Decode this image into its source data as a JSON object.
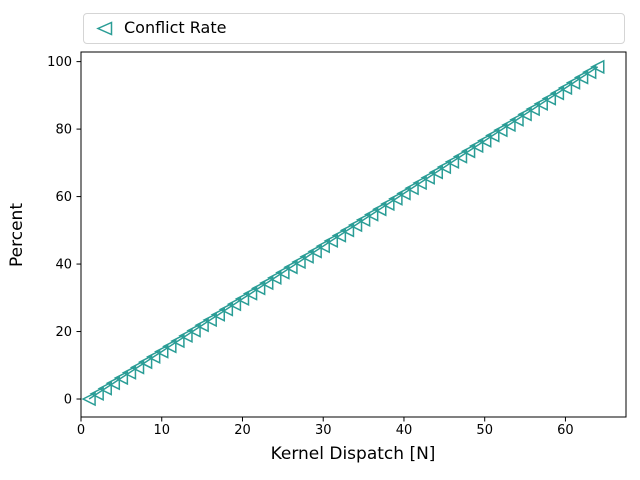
{
  "figure": {
    "background": "#ffffff",
    "accent_color": "#2a9d96",
    "spine_color": "#000000",
    "legend": {
      "label": "Conflict Rate",
      "marker_icon": "left-triangle-icon"
    },
    "chart_data": {
      "type": "line",
      "title": "",
      "xlabel": "Kernel Dispatch [N]",
      "ylabel": "Percent",
      "legend_position": "top-expanded",
      "grid": false,
      "marker": "left-triangle",
      "marker_fill": "none",
      "xlim": [
        0,
        67.5
      ],
      "ylim": [
        -5.33,
        102.85
      ],
      "xticks": [
        0,
        10,
        20,
        30,
        40,
        50,
        60
      ],
      "yticks": [
        0,
        20,
        40,
        60,
        80,
        100
      ],
      "x": [
        1,
        2,
        3,
        4,
        5,
        6,
        7,
        8,
        9,
        10,
        11,
        12,
        13,
        14,
        15,
        16,
        17,
        18,
        19,
        20,
        21,
        22,
        23,
        24,
        25,
        26,
        27,
        28,
        29,
        30,
        31,
        32,
        33,
        34,
        35,
        36,
        37,
        38,
        39,
        40,
        41,
        42,
        43,
        44,
        45,
        46,
        47,
        48,
        49,
        50,
        51,
        52,
        53,
        54,
        55,
        56,
        57,
        58,
        59,
        60,
        61,
        62,
        63,
        64
      ],
      "series": [
        {
          "name": "Conflict Rate",
          "values": [
            0,
            1.56,
            3.12,
            4.69,
            6.25,
            7.81,
            9.38,
            10.94,
            12.5,
            14.06,
            15.62,
            17.19,
            18.75,
            20.31,
            21.88,
            23.44,
            25,
            26.56,
            28.12,
            29.69,
            31.25,
            32.81,
            34.38,
            35.94,
            37.5,
            39.06,
            40.62,
            42.19,
            43.75,
            45.31,
            46.88,
            48.44,
            50,
            51.56,
            53.12,
            54.69,
            56.25,
            57.81,
            59.38,
            60.94,
            62.5,
            64.06,
            65.62,
            67.19,
            68.75,
            70.31,
            71.88,
            73.44,
            75,
            76.56,
            78.12,
            79.69,
            81.25,
            82.81,
            84.38,
            85.94,
            87.5,
            89.06,
            90.62,
            92.19,
            93.75,
            95.31,
            96.88,
            98.44
          ]
        }
      ]
    }
  }
}
